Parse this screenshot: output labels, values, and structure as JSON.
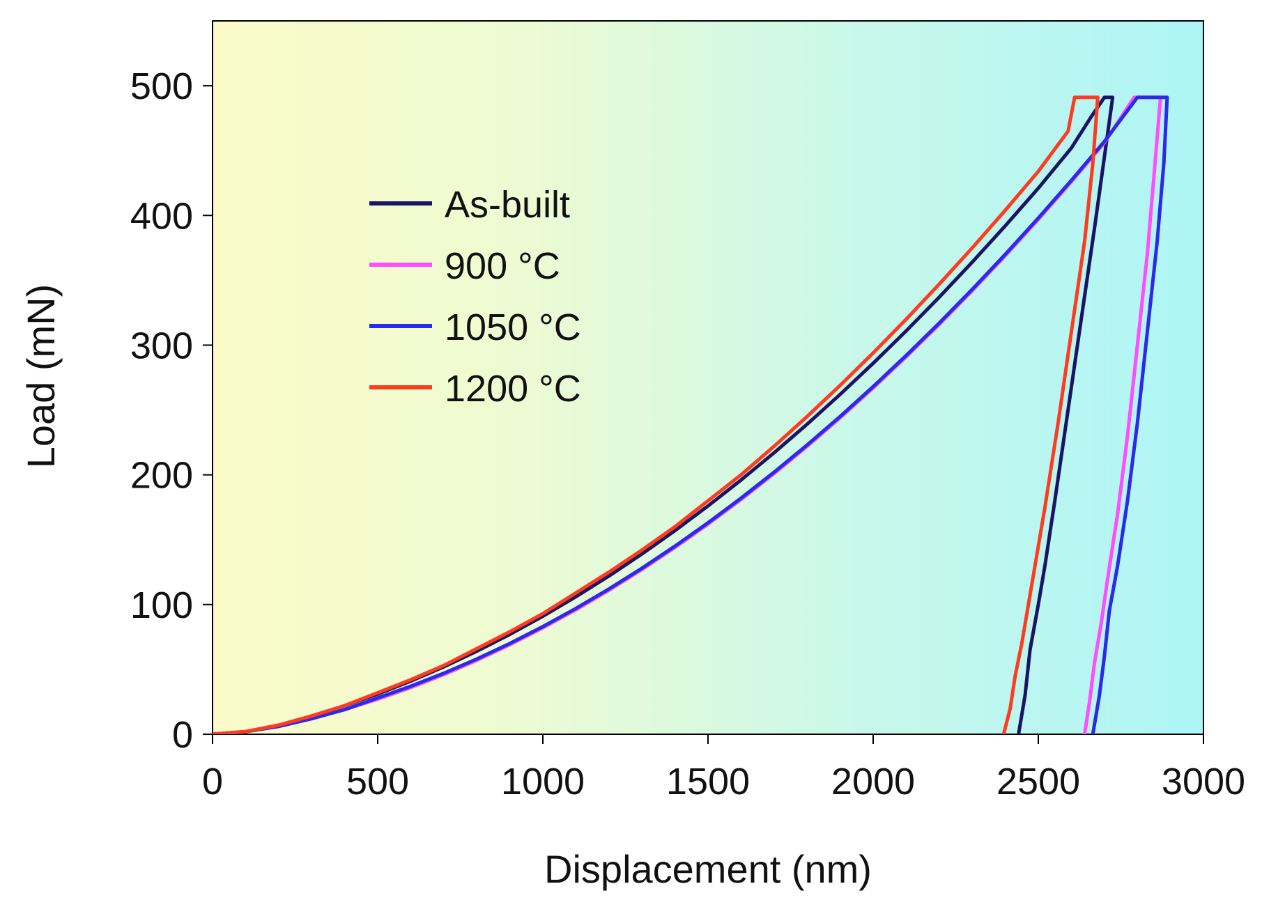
{
  "chart_data": {
    "type": "line",
    "title": "",
    "xlabel": "Displacement (nm)",
    "ylabel": "Load (mN)",
    "xlim": [
      0,
      3000
    ],
    "ylim": [
      0,
      550
    ],
    "xticks": [
      0,
      500,
      1000,
      1500,
      2000,
      2500,
      3000
    ],
    "yticks": [
      0,
      100,
      200,
      300,
      400,
      500
    ],
    "grid": false,
    "legend_position": "upper-left",
    "background_gradient": [
      "#fbfbc8",
      "#eefbd2",
      "#c9f8ea",
      "#aef5f6"
    ],
    "series": [
      {
        "name": "As-built",
        "color": "#1b1464",
        "x": [
          0,
          100,
          200,
          300,
          400,
          500,
          600,
          700,
          800,
          900,
          1000,
          1100,
          1200,
          1300,
          1400,
          1500,
          1600,
          1700,
          1800,
          1900,
          2000,
          2100,
          2200,
          2300,
          2400,
          2500,
          2600,
          2660,
          2700,
          2725,
          2700,
          2670,
          2630,
          2590,
          2550,
          2520,
          2500,
          2475,
          2460,
          2440
        ],
        "y": [
          0,
          2,
          7,
          14,
          22,
          31,
          41,
          52,
          64,
          77,
          91,
          106,
          122,
          139,
          157,
          176,
          196,
          217,
          239,
          262,
          286,
          311,
          337,
          364,
          392,
          421,
          452,
          476,
          491,
          491,
          445,
          390,
          320,
          250,
          180,
          130,
          100,
          65,
          30,
          0
        ]
      },
      {
        "name": "900 °C",
        "sup": "o",
        "unit": "C",
        "color": "#ff4dff",
        "x": [
          0,
          100,
          200,
          300,
          400,
          500,
          600,
          700,
          800,
          900,
          1000,
          1100,
          1200,
          1300,
          1400,
          1500,
          1600,
          1700,
          1800,
          1900,
          2000,
          2100,
          2200,
          2300,
          2400,
          2500,
          2600,
          2700,
          2790,
          2870,
          2850,
          2830,
          2800,
          2770,
          2740,
          2710,
          2690,
          2670,
          2655,
          2640
        ],
        "y": [
          0,
          2,
          6,
          12,
          19,
          27,
          36,
          46,
          57,
          69,
          82,
          96,
          111,
          127,
          144,
          162,
          181,
          201,
          222,
          244,
          267,
          291,
          316,
          342,
          369,
          397,
          426,
          456,
          491,
          491,
          430,
          370,
          300,
          230,
          170,
          120,
          85,
          55,
          25,
          0
        ]
      },
      {
        "name": "1050 °C",
        "sup": "o",
        "unit": "C",
        "color": "#2a2ae8",
        "x": [
          0,
          100,
          200,
          300,
          400,
          500,
          600,
          700,
          800,
          900,
          1000,
          1100,
          1200,
          1300,
          1400,
          1500,
          1600,
          1700,
          1800,
          1900,
          2000,
          2100,
          2200,
          2300,
          2400,
          2500,
          2600,
          2700,
          2800,
          2890,
          2880,
          2860,
          2830,
          2800,
          2770,
          2740,
          2715,
          2700,
          2685,
          2665
        ],
        "y": [
          0,
          2,
          6,
          12,
          19,
          28,
          37,
          47,
          58,
          70,
          83,
          97,
          112,
          128,
          145,
          163,
          182,
          202,
          223,
          245,
          268,
          292,
          317,
          343,
          370,
          398,
          427,
          457,
          491,
          491,
          440,
          380,
          310,
          240,
          180,
          130,
          95,
          60,
          30,
          0
        ]
      },
      {
        "name": "1200 °C",
        "sup": "o",
        "unit": "C",
        "color": "#ff3b1f",
        "x": [
          0,
          100,
          200,
          300,
          400,
          500,
          600,
          700,
          800,
          900,
          1000,
          1100,
          1200,
          1300,
          1400,
          1500,
          1600,
          1700,
          1800,
          1900,
          2000,
          2100,
          2200,
          2300,
          2400,
          2500,
          2590,
          2610,
          2680,
          2665,
          2640,
          2600,
          2560,
          2520,
          2490,
          2470,
          2450,
          2430,
          2415,
          2395
        ],
        "y": [
          0,
          2,
          7,
          14,
          22,
          32,
          42,
          53,
          66,
          79,
          93,
          109,
          125,
          142,
          160,
          180,
          200,
          222,
          245,
          269,
          294,
          320,
          347,
          375,
          404,
          434,
          465,
          491,
          491,
          440,
          380,
          310,
          240,
          175,
          130,
          100,
          70,
          45,
          20,
          0
        ]
      }
    ]
  }
}
